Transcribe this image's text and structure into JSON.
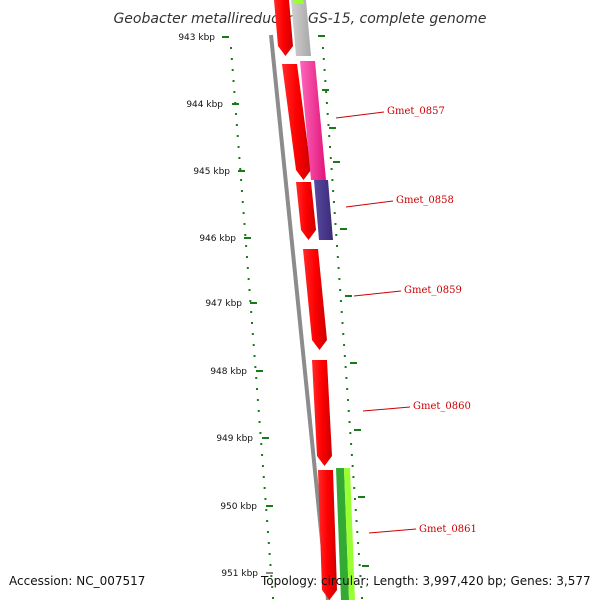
{
  "title": "Geobacter metallireducens GS-15, complete genome",
  "kbp_markers": [
    "943 kbp",
    "944 kbp",
    "945 kbp",
    "946 kbp",
    "947 kbp",
    "948 kbp",
    "949 kbp",
    "950 kbp",
    "951 kbp"
  ],
  "gene_labels": [
    "Gmet_0857",
    "Gmet_0858",
    "Gmet_0859",
    "Gmet_0860",
    "Gmet_0861"
  ],
  "footer": {
    "accession": "Accession: NC_007517",
    "topology": "Topology: circular; Length: 3,997,420 bp; Genes: 3,577"
  },
  "colors": {
    "background": "#ffffff",
    "backbone": "#8c8c8c",
    "forward_genes": "#ff0000",
    "gc_skew_ticks": "#1a7a1a",
    "label_text": "#cc0000",
    "feature_gray": "#bdbdbd",
    "feature_magenta": "#ff3399",
    "feature_indigo": "#4b3a8c",
    "feature_green": "#33aa33",
    "feature_lime": "#99ff33"
  }
}
